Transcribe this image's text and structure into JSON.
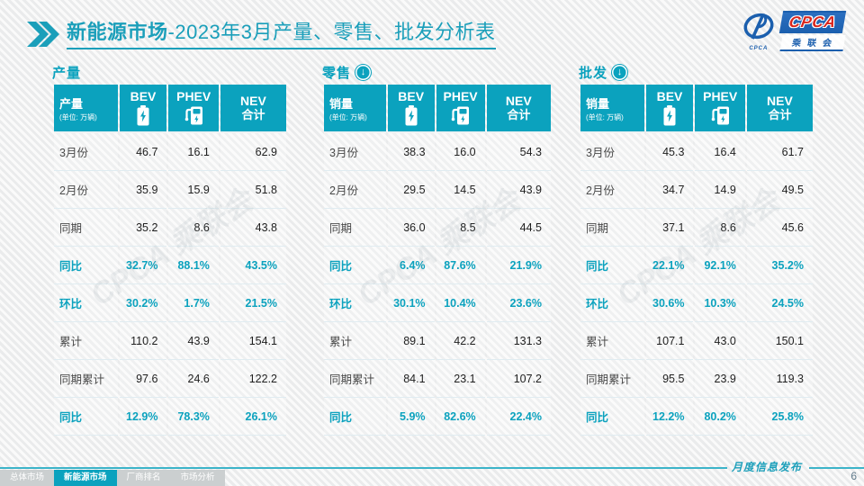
{
  "header": {
    "title_bold": "新能源市场",
    "title_rest": "-2023年3月产量、零售、批发分析表",
    "logo": {
      "acronym": "CPCA",
      "chinese": "乘联会",
      "emblem_text": "CPCA"
    }
  },
  "watermark": "CPCA 乘联会",
  "tables": [
    {
      "id": "production",
      "section": "产量",
      "trend": null,
      "measure": "产量",
      "unit": "(单位: 万辆)",
      "columns": [
        {
          "id": "bev",
          "label": "BEV",
          "icon": "battery-icon"
        },
        {
          "id": "phev",
          "label": "PHEV",
          "icon": "charger-icon"
        },
        {
          "id": "nev-total",
          "label": "NEV",
          "label2": "合计"
        }
      ],
      "rows": [
        {
          "label": "3月份",
          "values": [
            "46.7",
            "16.1",
            "62.9"
          ],
          "highlight": false
        },
        {
          "label": "2月份",
          "values": [
            "35.9",
            "15.9",
            "51.8"
          ],
          "highlight": false
        },
        {
          "label": "同期",
          "values": [
            "35.2",
            "8.6",
            "43.8"
          ],
          "highlight": false
        },
        {
          "label": "同比",
          "values": [
            "32.7%",
            "88.1%",
            "43.5%"
          ],
          "highlight": true
        },
        {
          "label": "环比",
          "values": [
            "30.2%",
            "1.7%",
            "21.5%"
          ],
          "highlight": true
        },
        {
          "label": "累计",
          "values": [
            "110.2",
            "43.9",
            "154.1"
          ],
          "highlight": false
        },
        {
          "label": "同期累计",
          "values": [
            "97.6",
            "24.6",
            "122.2"
          ],
          "highlight": false
        },
        {
          "label": "同比",
          "values": [
            "12.9%",
            "78.3%",
            "26.1%"
          ],
          "highlight": true
        }
      ]
    },
    {
      "id": "retail",
      "section": "零售",
      "trend": "down",
      "measure": "销量",
      "unit": "(单位: 万辆)",
      "columns": [
        {
          "id": "bev",
          "label": "BEV",
          "icon": "battery-icon"
        },
        {
          "id": "phev",
          "label": "PHEV",
          "icon": "charger-icon"
        },
        {
          "id": "nev-total",
          "label": "NEV",
          "label2": "合计"
        }
      ],
      "rows": [
        {
          "label": "3月份",
          "values": [
            "38.3",
            "16.0",
            "54.3"
          ],
          "highlight": false
        },
        {
          "label": "2月份",
          "values": [
            "29.5",
            "14.5",
            "43.9"
          ],
          "highlight": false
        },
        {
          "label": "同期",
          "values": [
            "36.0",
            "8.5",
            "44.5"
          ],
          "highlight": false
        },
        {
          "label": "同比",
          "values": [
            "6.4%",
            "87.6%",
            "21.9%"
          ],
          "highlight": true
        },
        {
          "label": "环比",
          "values": [
            "30.1%",
            "10.4%",
            "23.6%"
          ],
          "highlight": true
        },
        {
          "label": "累计",
          "values": [
            "89.1",
            "42.2",
            "131.3"
          ],
          "highlight": false
        },
        {
          "label": "同期累计",
          "values": [
            "84.1",
            "23.1",
            "107.2"
          ],
          "highlight": false
        },
        {
          "label": "同比",
          "values": [
            "5.9%",
            "82.6%",
            "22.4%"
          ],
          "highlight": true
        }
      ]
    },
    {
      "id": "wholesale",
      "section": "批发",
      "trend": "down",
      "measure": "销量",
      "unit": "(单位: 万辆)",
      "columns": [
        {
          "id": "bev",
          "label": "BEV",
          "icon": "battery-icon"
        },
        {
          "id": "phev",
          "label": "PHEV",
          "icon": "charger-icon"
        },
        {
          "id": "nev-total",
          "label": "NEV",
          "label2": "合计"
        }
      ],
      "rows": [
        {
          "label": "3月份",
          "values": [
            "45.3",
            "16.4",
            "61.7"
          ],
          "highlight": false
        },
        {
          "label": "2月份",
          "values": [
            "34.7",
            "14.9",
            "49.5"
          ],
          "highlight": false
        },
        {
          "label": "同期",
          "values": [
            "37.1",
            "8.6",
            "45.6"
          ],
          "highlight": false
        },
        {
          "label": "同比",
          "values": [
            "22.1%",
            "92.1%",
            "35.2%"
          ],
          "highlight": true
        },
        {
          "label": "环比",
          "values": [
            "30.6%",
            "10.3%",
            "24.5%"
          ],
          "highlight": true
        },
        {
          "label": "累计",
          "values": [
            "107.1",
            "43.0",
            "150.1"
          ],
          "highlight": false
        },
        {
          "label": "同期累计",
          "values": [
            "95.5",
            "23.9",
            "119.3"
          ],
          "highlight": false
        },
        {
          "label": "同比",
          "values": [
            "12.2%",
            "80.2%",
            "25.8%"
          ],
          "highlight": true
        }
      ]
    }
  ],
  "footer": {
    "tabs": [
      {
        "id": "overall-market",
        "label": "总体市场",
        "active": false
      },
      {
        "id": "nev-market",
        "label": "新能源市场",
        "active": true
      },
      {
        "id": "manufacturer-ranking",
        "label": "厂商排名",
        "active": false
      },
      {
        "id": "market-analysis",
        "label": "市场分析",
        "active": false
      }
    ],
    "caption": "月度信息发布",
    "page_number": "6"
  },
  "colors": {
    "accent_teal": "#0ba2be",
    "title_teal": "#1b9fba",
    "highlight_row_bg": "#e2f3f9",
    "logo_blue": "#1b5fae",
    "logo_red": "#d9251c"
  }
}
